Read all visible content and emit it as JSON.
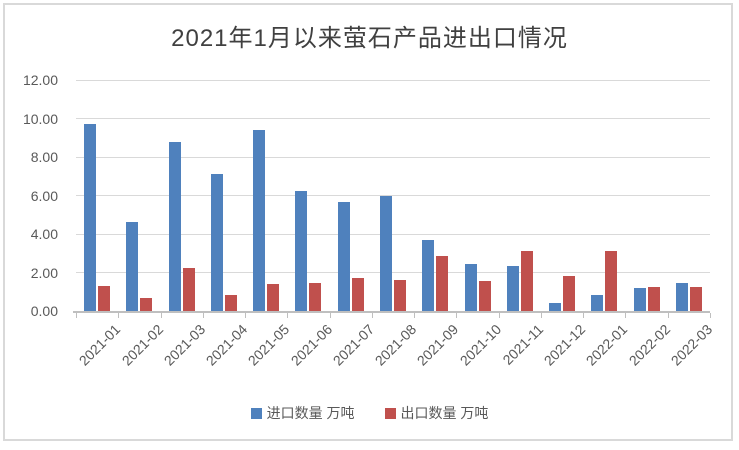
{
  "title": "2021年1月以来萤石产品进出口情况",
  "colors": {
    "import_blue": "#4f81bd",
    "export_red": "#c0504d",
    "grid": "#d9d9d9",
    "axis": "#bfbfbf",
    "label_text": "#595959",
    "title_text": "#404040",
    "frame_border": "#d9d9d9"
  },
  "chart_data": {
    "type": "bar",
    "title": "2021年1月以来萤石产品进出口情况",
    "categories": [
      "2021-01",
      "2021-02",
      "2021-03",
      "2021-04",
      "2021-05",
      "2021-06",
      "2021-07",
      "2021-08",
      "2021-09",
      "2021-10",
      "2021-11",
      "2021-12",
      "2022-01",
      "2022-02",
      "2022-03"
    ],
    "series": [
      {
        "name": "进口数量 万吨",
        "color": "#4f81bd",
        "values": [
          9.7,
          4.6,
          8.8,
          7.1,
          9.4,
          6.25,
          5.65,
          6.0,
          3.7,
          2.45,
          2.35,
          0.4,
          0.85,
          1.2,
          1.45
        ]
      },
      {
        "name": "出口数量 万吨",
        "color": "#c0504d",
        "values": [
          1.3,
          0.65,
          2.25,
          0.85,
          1.4,
          1.45,
          1.7,
          1.6,
          2.85,
          1.55,
          3.1,
          1.8,
          3.1,
          1.25,
          1.25
        ]
      }
    ],
    "xlabel": "",
    "ylabel": "",
    "ylim": [
      0,
      12
    ],
    "ytick_step": 2,
    "ytick_labels": [
      "0.00",
      "2.00",
      "4.00",
      "6.00",
      "8.00",
      "10.00",
      "12.00"
    ],
    "grid": true,
    "legend_position": "bottom"
  }
}
